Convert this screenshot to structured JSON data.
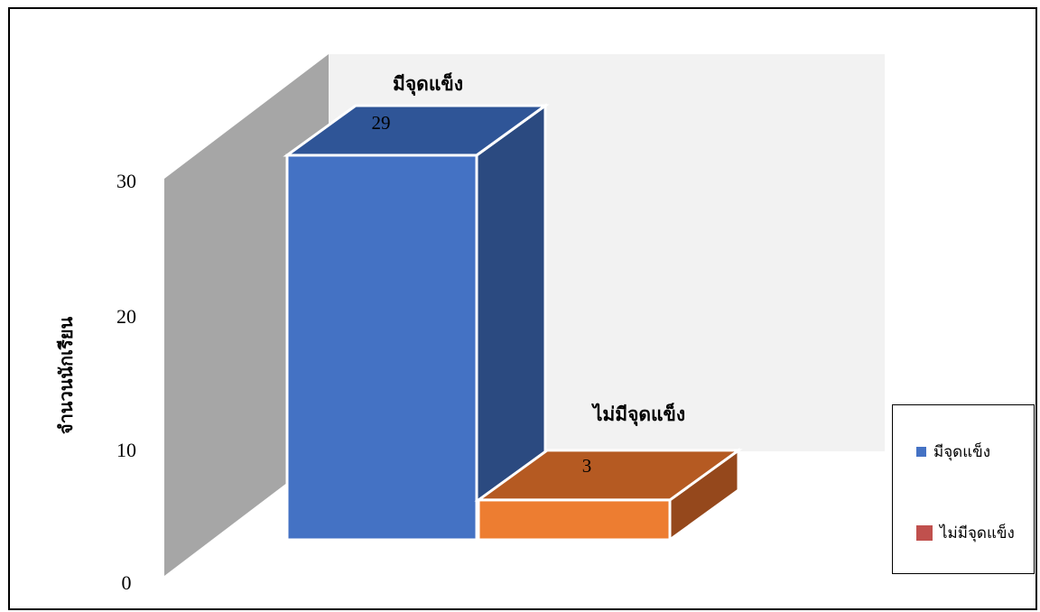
{
  "chart_data": {
    "type": "bar",
    "categories": [
      "มีจุดแข็ง",
      "ไม่มีจุดแข็ง"
    ],
    "values": [
      29,
      3
    ],
    "ylabel": "จำนวนนักเรียน",
    "yticks": [
      "0",
      "10",
      "20",
      "30"
    ],
    "ylim": [
      0,
      30
    ],
    "legend": [
      "มีจุดแข็ง",
      "ไม่มีจุดแข็ง"
    ],
    "legend_position": "right",
    "colors": {
      "series1": "#4472C4",
      "series1_top": "#2F5597",
      "series1_side": "#2B4A80",
      "series2": "#ED7D31",
      "series2_top": "#B55A22",
      "series2_side": "#95481C",
      "legend_series1": "#4472C4",
      "legend_series2": "#C0504D",
      "wall_side": "#A6A6A6",
      "wall_back": "#F2F2F2"
    }
  }
}
